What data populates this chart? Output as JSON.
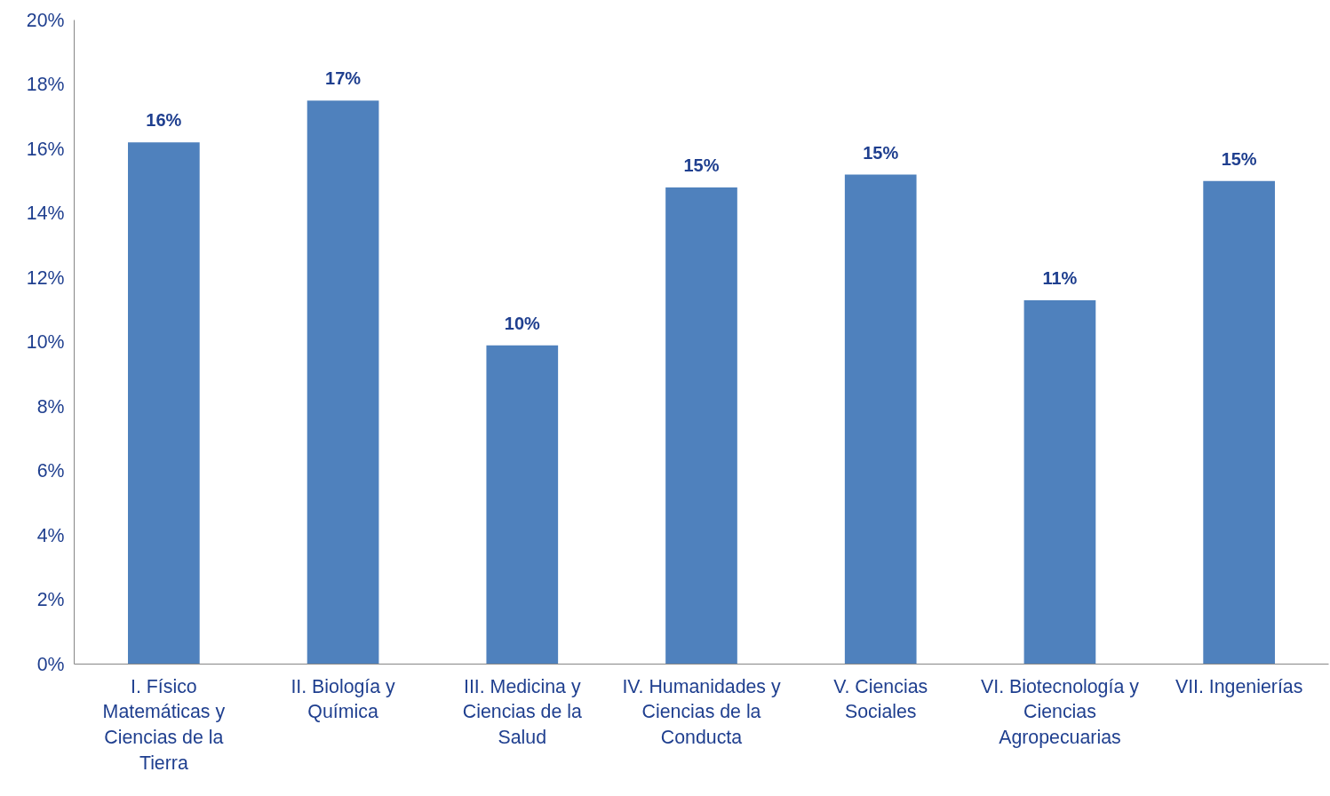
{
  "chart_data": {
    "type": "bar",
    "categories": [
      "I. Físico Matemáticas y Ciencias de la Tierra",
      "II. Biología y Química",
      "III. Medicina y Ciencias de la Salud",
      "IV. Humanidades y Ciencias de la Conducta",
      "V. Ciencias Sociales",
      "VI. Biotecnología y Ciencias Agropecuarias",
      "VII. Ingenierías"
    ],
    "values": [
      16.2,
      17.5,
      9.9,
      14.8,
      15.2,
      11.3,
      15.0
    ],
    "value_labels": [
      "16%",
      "17%",
      "10%",
      "15%",
      "15%",
      "11%",
      "15%"
    ],
    "color": "#4f81bd",
    "ylim": [
      0,
      20
    ],
    "yticks": [
      {
        "value": 0,
        "label": "0%"
      },
      {
        "value": 2,
        "label": "2%"
      },
      {
        "value": 4,
        "label": "4%"
      },
      {
        "value": 6,
        "label": "6%"
      },
      {
        "value": 8,
        "label": "8%"
      },
      {
        "value": 10,
        "label": "10%"
      },
      {
        "value": 12,
        "label": "12%"
      },
      {
        "value": 14,
        "label": "14%"
      },
      {
        "value": 16,
        "label": "16%"
      },
      {
        "value": 18,
        "label": "18%"
      },
      {
        "value": 20,
        "label": "20%"
      }
    ],
    "grid": false
  }
}
